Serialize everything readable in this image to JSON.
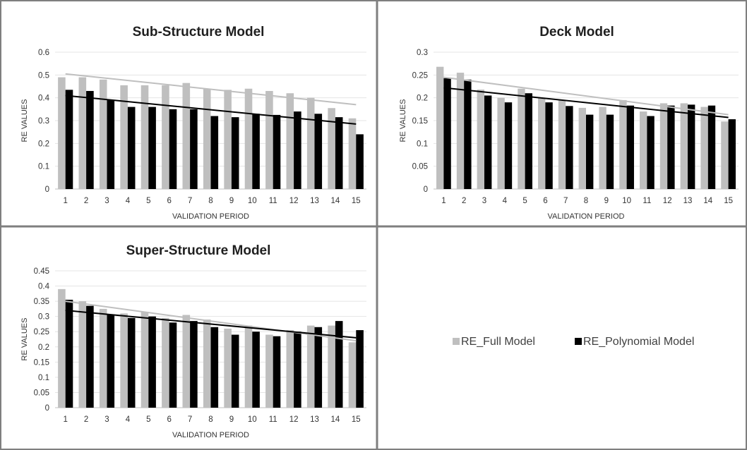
{
  "chart_data": [
    {
      "type": "bar",
      "title": "Sub-Structure Model",
      "xlabel": "VALIDATION PERIOD",
      "ylabel": "RE VALUES",
      "ylim": [
        0,
        0.6
      ],
      "yticks": [
        "0",
        "0.1",
        "0.2",
        "0.3",
        "0.4",
        "0.5",
        "0.6"
      ],
      "categories": [
        "1",
        "2",
        "3",
        "4",
        "5",
        "6",
        "7",
        "8",
        "9",
        "10",
        "11",
        "12",
        "13",
        "14",
        "15"
      ],
      "series": [
        {
          "name": "RE_Full Model",
          "color": "#bfbfbf",
          "values": [
            0.49,
            0.49,
            0.48,
            0.455,
            0.455,
            0.455,
            0.465,
            0.44,
            0.435,
            0.44,
            0.43,
            0.42,
            0.4,
            0.355,
            0.31
          ]
        },
        {
          "name": "RE_Polynomial Model",
          "color": "#000000",
          "values": [
            0.435,
            0.43,
            0.39,
            0.36,
            0.36,
            0.35,
            0.35,
            0.32,
            0.315,
            0.33,
            0.325,
            0.34,
            0.33,
            0.315,
            0.24
          ]
        }
      ],
      "trendlines": [
        {
          "color": "#bfbfbf",
          "start": 0.505,
          "end": 0.37
        },
        {
          "color": "#000000",
          "start": 0.41,
          "end": 0.285
        }
      ],
      "grid": true
    },
    {
      "type": "bar",
      "title": "Deck Model",
      "xlabel": "VALIDATION PERIOD",
      "ylabel": "RE VALUES",
      "ylim": [
        0,
        0.3
      ],
      "yticks": [
        "0",
        "0.05",
        "0.1",
        "0.15",
        "0.2",
        "0.25",
        "0.3"
      ],
      "categories": [
        "1",
        "2",
        "3",
        "4",
        "5",
        "6",
        "7",
        "8",
        "9",
        "10",
        "11",
        "12",
        "13",
        "14",
        "15"
      ],
      "series": [
        {
          "name": "RE_Full Model",
          "color": "#bfbfbf",
          "values": [
            0.268,
            0.255,
            0.218,
            0.2,
            0.22,
            0.2,
            0.195,
            0.178,
            0.18,
            0.195,
            0.17,
            0.188,
            0.188,
            0.18,
            0.148
          ]
        },
        {
          "name": "RE_Polynomial Model",
          "color": "#000000",
          "values": [
            0.243,
            0.24,
            0.205,
            0.19,
            0.21,
            0.19,
            0.182,
            0.163,
            0.163,
            0.183,
            0.16,
            0.183,
            0.185,
            0.183,
            0.153
          ]
        }
      ],
      "trendlines": [
        {
          "color": "#bfbfbf",
          "start": 0.245,
          "end": 0.163
        },
        {
          "color": "#000000",
          "start": 0.222,
          "end": 0.157
        }
      ],
      "grid": true
    },
    {
      "type": "bar",
      "title": "Super-Structure Model",
      "xlabel": "VALIDATION PERIOD",
      "ylabel": "RE VALUES",
      "ylim": [
        0,
        0.45
      ],
      "yticks": [
        "0",
        "0.05",
        "0.1",
        "0.15",
        "0.2",
        "0.25",
        "0.3",
        "0.35",
        "0.4",
        "0.45"
      ],
      "categories": [
        "1",
        "2",
        "3",
        "4",
        "5",
        "6",
        "7",
        "8",
        "9",
        "10",
        "11",
        "12",
        "13",
        "14",
        "15"
      ],
      "series": [
        {
          "name": "RE_Full Model",
          "color": "#bfbfbf",
          "values": [
            0.39,
            0.35,
            0.325,
            0.31,
            0.315,
            0.295,
            0.305,
            0.29,
            0.26,
            0.27,
            0.24,
            0.255,
            0.27,
            0.27,
            0.215
          ]
        },
        {
          "name": "RE_Polynomial Model",
          "color": "#000000",
          "values": [
            0.355,
            0.335,
            0.305,
            0.295,
            0.3,
            0.28,
            0.285,
            0.265,
            0.24,
            0.25,
            0.235,
            0.25,
            0.265,
            0.285,
            0.255
          ]
        }
      ],
      "trendlines": [
        {
          "color": "#bfbfbf",
          "start": 0.35,
          "end": 0.22
        },
        {
          "color": "#000000",
          "start": 0.32,
          "end": 0.23
        }
      ],
      "grid": true
    }
  ],
  "legend": {
    "items": [
      {
        "label": "RE_Full Model",
        "color": "#bfbfbf"
      },
      {
        "label": "RE_Polynomial Model",
        "color": "#000000"
      }
    ]
  }
}
